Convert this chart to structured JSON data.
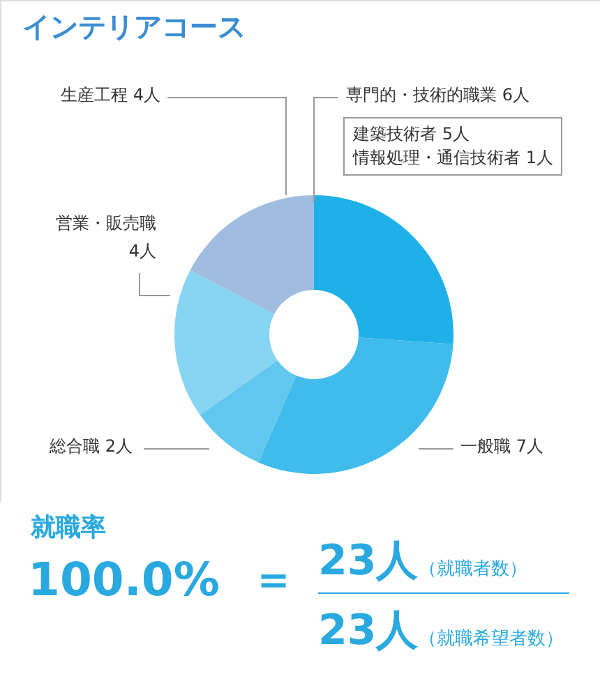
{
  "chart_data": {
    "type": "donut",
    "title": "インテリアコース",
    "categories": [
      "専門的・技術的職業",
      "一般職",
      "総合職",
      "営業・販売職",
      "生産工程"
    ],
    "values": [
      6,
      7,
      2,
      4,
      4
    ],
    "value_labels": [
      "6人",
      "7人",
      "2人",
      "4人",
      "4人"
    ],
    "colors": [
      "#1fb0e8",
      "#40bcec",
      "#62c7ef",
      "#88d4f3",
      "#a0bde0"
    ],
    "annotations": [
      "建築技術者 5人",
      "情報処理・通信技術者 1人",
      "就職率",
      "100.0%",
      "＝",
      "23人（就職者数）",
      "23人（就職希望者数）"
    ]
  }
}
